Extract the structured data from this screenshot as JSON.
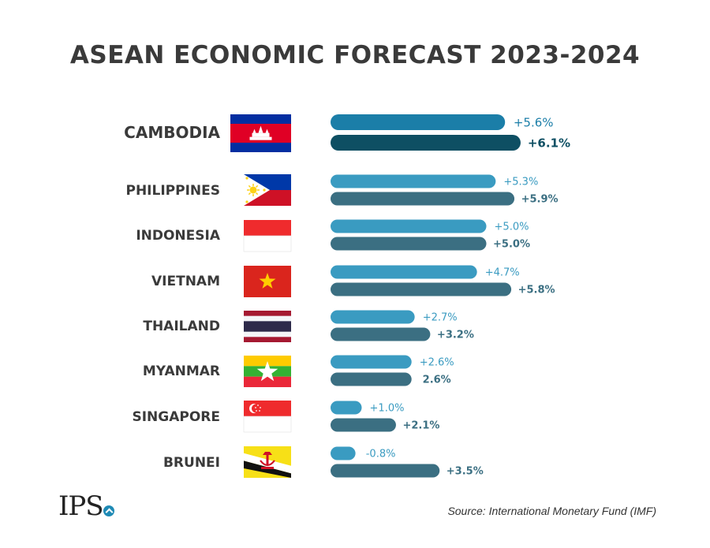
{
  "title": "ASEAN ECONOMIC FORECAST 2023-2024",
  "source": "Source: International Monetary Fund (IMF)",
  "logo": "IPS",
  "colors": {
    "bar_2023": "#3a9bc1",
    "bar_2024": "#3b6f82",
    "bar_2023_top": "#1b7ea8",
    "bar_2024_top": "#0e4f63",
    "text": "#3a3a3a"
  },
  "chart_data": {
    "type": "bar",
    "orientation": "horizontal",
    "title": "ASEAN ECONOMIC FORECAST 2023-2024",
    "categories": [
      "CAMBODIA",
      "PHILIPPINES",
      "INDONESIA",
      "VIETNAM",
      "THAILAND",
      "MYANMAR",
      "SINGAPORE",
      "BRUNEI"
    ],
    "series": [
      {
        "name": "2023",
        "values": [
          5.6,
          5.3,
          5.0,
          4.7,
          2.7,
          2.6,
          1.0,
          -0.8
        ],
        "labels": [
          "+5.6%",
          "+5.3%",
          "+5.0%",
          "+4.7%",
          "+2.7%",
          "+2.6%",
          "+1.0%",
          "-0.8%"
        ]
      },
      {
        "name": "2024",
        "values": [
          6.1,
          5.9,
          5.0,
          5.8,
          3.2,
          2.6,
          2.1,
          3.5
        ],
        "labels": [
          "+6.1%",
          "+5.9%",
          "+5.0%",
          "+5.8%",
          "+3.2%",
          "2.6%",
          "+2.1%",
          "+3.5%"
        ]
      }
    ],
    "flags": [
      "cambodia-flag",
      "philippines-flag",
      "indonesia-flag",
      "vietnam-flag",
      "thailand-flag",
      "myanmar-flag",
      "singapore-flag",
      "brunei-flag"
    ]
  }
}
